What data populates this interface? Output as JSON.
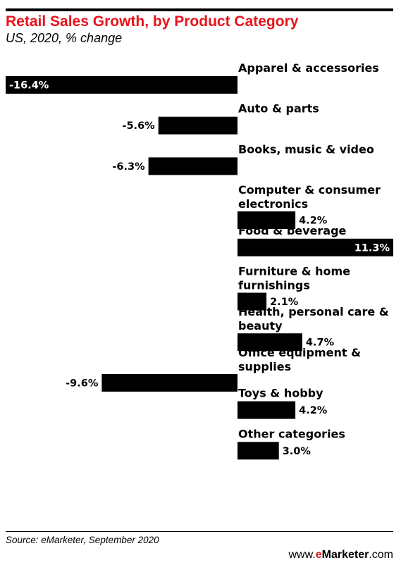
{
  "header": {
    "title": "Retail Sales Growth, by Product Category",
    "subtitle": "US, 2020, % change"
  },
  "footer": {
    "source": "Source: eMarketer, September 2020",
    "brand_prefix": "www.",
    "brand_name": "eMarketer",
    "brand_suffix": ".com"
  },
  "colors": {
    "title": "#e8121b",
    "bar": "#000000",
    "bar_label_inside": "#ffffff",
    "text": "#000000",
    "brand_accent": "#e8121b"
  },
  "chart_data": {
    "type": "bar",
    "orientation": "horizontal",
    "title": "Retail Sales Growth, by Product Category",
    "subtitle": "US, 2020, % change",
    "unit": "%",
    "categories": [
      [
        "Apparel & accessories"
      ],
      [
        "Auto & parts"
      ],
      [
        "Books, music & video"
      ],
      [
        "Computer & consumer",
        "electronics"
      ],
      [
        "Food & beverage"
      ],
      [
        "Furniture & home",
        "furnishings"
      ],
      [
        "Health, personal care &",
        "beauty"
      ],
      [
        "Office equipment &",
        "supplies"
      ],
      [
        "Toys & hobby"
      ],
      [
        "Other categories"
      ]
    ],
    "values": [
      -16.4,
      -5.6,
      -6.3,
      4.2,
      11.3,
      2.1,
      4.7,
      -9.6,
      4.2,
      3.0
    ],
    "value_labels": [
      "-16.4%",
      "-5.6%",
      "-6.3%",
      "4.2%",
      "11.3%",
      "2.1%",
      "4.7%",
      "-9.6%",
      "4.2%",
      "3.0%"
    ],
    "xlim": [
      -16.4,
      11.3
    ],
    "grid": false,
    "legend": "none"
  }
}
